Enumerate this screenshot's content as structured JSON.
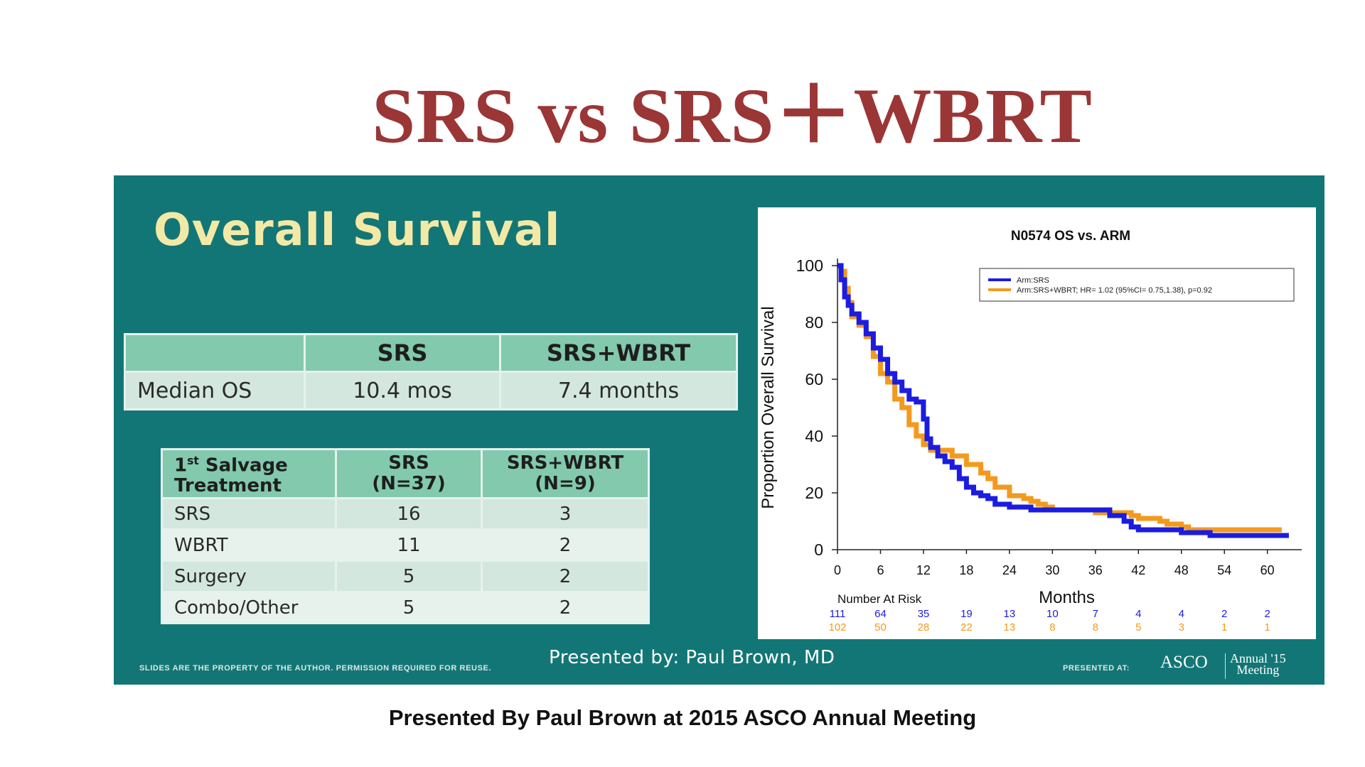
{
  "title": "SRS vs SRS＋WBRT",
  "slide": {
    "heading": "Overall Survival",
    "os_table": {
      "headers": [
        "",
        "SRS",
        "SRS+WBRT"
      ],
      "row_label": "Median OS",
      "values": [
        "10.4 mos",
        "7.4 months"
      ]
    },
    "salvage_table": {
      "header_label_line1": "1",
      "header_label_sup": "st",
      "header_label_rest": " Salvage",
      "header_label_line2": "Treatment",
      "col1_line1": "SRS",
      "col1_line2": "(N=37)",
      "col2_line1": "SRS+WBRT",
      "col2_line2": "(N=9)",
      "rows": [
        {
          "label": "SRS",
          "srs": "16",
          "srs_wbrt": "3"
        },
        {
          "label": "WBRT",
          "srs": "11",
          "srs_wbrt": "2"
        },
        {
          "label": "Surgery",
          "srs": "5",
          "srs_wbrt": "2"
        },
        {
          "label": "Combo/Other",
          "srs": "5",
          "srs_wbrt": "2"
        }
      ]
    },
    "presenter": "Presented by: Paul Brown, MD",
    "disclaimer": "SLIDES ARE THE PROPERTY OF THE AUTHOR. PERMISSION REQUIRED FOR REUSE.",
    "presented_at": "PRESENTED AT:",
    "asco_logo_text": "ASCO",
    "annual_meeting_line1": "Annual '15",
    "annual_meeting_line2": "Meeting"
  },
  "chart_data": {
    "type": "line",
    "title": "N0574 OS vs. ARM",
    "xlabel": "Months",
    "ylabel": "Proportion Overall Survival",
    "xlim": [
      0,
      64
    ],
    "ylim": [
      0,
      100
    ],
    "xticks": [
      0,
      6,
      12,
      18,
      24,
      30,
      36,
      42,
      48,
      54,
      60
    ],
    "yticks": [
      0,
      20,
      40,
      60,
      80,
      100
    ],
    "legend_position": "top-right",
    "colors": {
      "SRS": "#1c1ce0",
      "SRS+WBRT": "#f39a1e"
    },
    "series": [
      {
        "name": "Arm:SRS",
        "color": "#1c1ce0",
        "points": [
          [
            0,
            100
          ],
          [
            0.5,
            95
          ],
          [
            1,
            89
          ],
          [
            1.5,
            86
          ],
          [
            2,
            83
          ],
          [
            3,
            80
          ],
          [
            4,
            76
          ],
          [
            5,
            71
          ],
          [
            6,
            67
          ],
          [
            7,
            62
          ],
          [
            8,
            59
          ],
          [
            9,
            56
          ],
          [
            10,
            53
          ],
          [
            11,
            52
          ],
          [
            12,
            46
          ],
          [
            12.5,
            39
          ],
          [
            13,
            36
          ],
          [
            14,
            33
          ],
          [
            15,
            31
          ],
          [
            16,
            29
          ],
          [
            17,
            25
          ],
          [
            18,
            22
          ],
          [
            19,
            20
          ],
          [
            20,
            19
          ],
          [
            21,
            18
          ],
          [
            22,
            16
          ],
          [
            23,
            16
          ],
          [
            24,
            15
          ],
          [
            26,
            15
          ],
          [
            27,
            14
          ],
          [
            28,
            14
          ],
          [
            30,
            14
          ],
          [
            32,
            14
          ],
          [
            36,
            14
          ],
          [
            38,
            12
          ],
          [
            40,
            10
          ],
          [
            41,
            8
          ],
          [
            42,
            7
          ],
          [
            46,
            7
          ],
          [
            48,
            6
          ],
          [
            50,
            6
          ],
          [
            52,
            5
          ],
          [
            55,
            5
          ],
          [
            58,
            5
          ],
          [
            60,
            5
          ],
          [
            62,
            5
          ],
          [
            63,
            5
          ]
        ]
      },
      {
        "name": "Arm:SRS+WBRT; HR= 1.02  (95%CI= 0.75,1.38), p=0.92",
        "color": "#f39a1e",
        "points": [
          [
            0,
            100
          ],
          [
            0.5,
            98
          ],
          [
            1,
            92
          ],
          [
            1.5,
            87
          ],
          [
            2,
            82
          ],
          [
            3,
            79
          ],
          [
            4,
            75
          ],
          [
            5,
            68
          ],
          [
            6,
            62
          ],
          [
            7,
            59
          ],
          [
            8,
            53
          ],
          [
            9,
            50
          ],
          [
            10,
            44
          ],
          [
            11,
            40
          ],
          [
            12,
            37
          ],
          [
            13,
            35
          ],
          [
            15,
            35
          ],
          [
            16,
            33
          ],
          [
            18,
            30
          ],
          [
            20,
            27
          ],
          [
            21,
            25
          ],
          [
            22,
            22
          ],
          [
            24,
            19
          ],
          [
            26,
            18
          ],
          [
            27,
            17
          ],
          [
            28,
            16
          ],
          [
            29,
            15
          ],
          [
            30,
            14
          ],
          [
            34,
            14
          ],
          [
            36,
            13
          ],
          [
            40,
            13
          ],
          [
            41,
            12
          ],
          [
            42,
            11
          ],
          [
            44,
            11
          ],
          [
            45,
            10
          ],
          [
            46,
            9
          ],
          [
            48,
            8
          ],
          [
            49,
            7
          ],
          [
            52,
            7
          ],
          [
            55,
            7
          ],
          [
            58,
            7
          ],
          [
            60,
            7
          ],
          [
            62,
            7
          ]
        ]
      }
    ],
    "risk_table": {
      "label": "Number At Risk",
      "times": [
        0,
        6,
        12,
        18,
        24,
        30,
        36,
        42,
        48,
        54,
        60
      ],
      "SRS": [
        111,
        64,
        35,
        19,
        13,
        10,
        7,
        4,
        4,
        2,
        2
      ],
      "SRS+WBRT": [
        102,
        50,
        28,
        22,
        13,
        8,
        8,
        5,
        3,
        1,
        1
      ]
    }
  },
  "caption": "Presented By Paul Brown at 2015 ASCO Annual Meeting"
}
